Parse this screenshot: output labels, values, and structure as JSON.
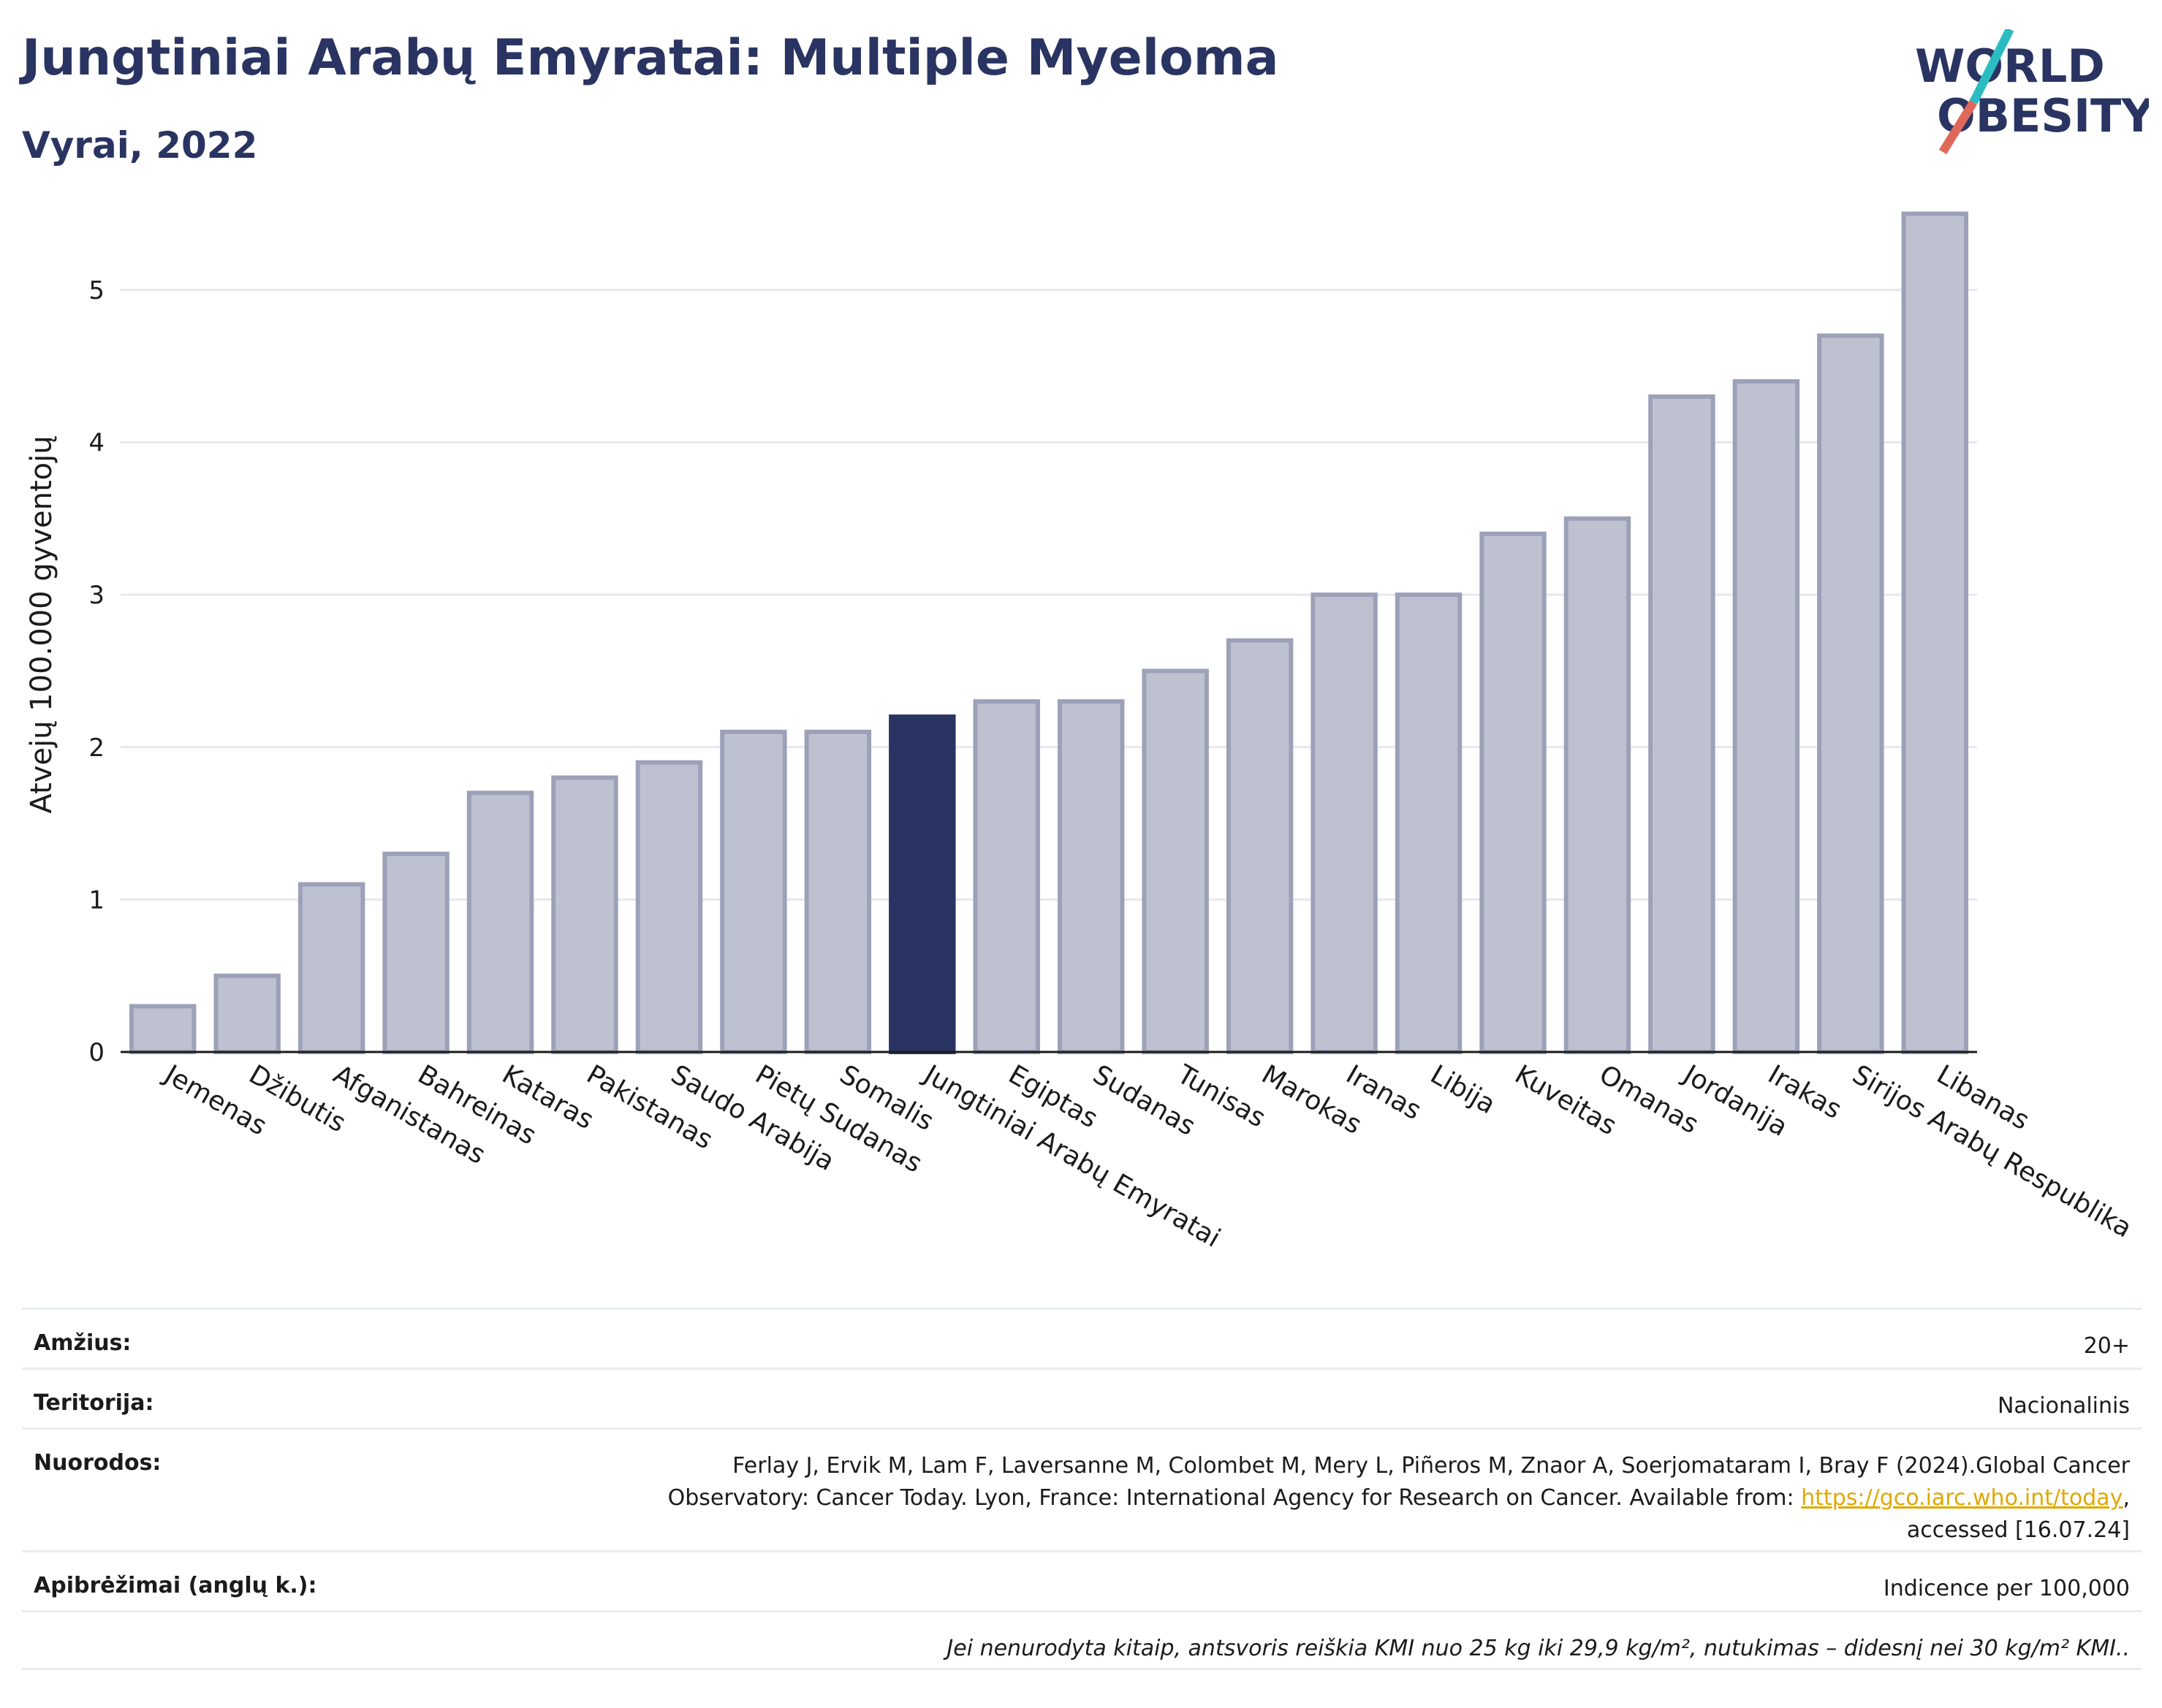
{
  "header": {
    "title": "Jungtiniai Arabų Emyratai: Multiple Myeloma",
    "subtitle": "Vyrai, 2022"
  },
  "logo": {
    "line1": "WORLD",
    "line2": "OBESITY",
    "accent_colors": [
      "#2bbcc2",
      "#e0685a"
    ]
  },
  "colors": {
    "bar": "#bec2d0",
    "bar_stroke": "#9ca1b8",
    "highlight": "#2a3462",
    "grid": "#e6e8ee"
  },
  "chart_data": {
    "type": "bar",
    "categories": [
      "Jemenas",
      "Džibutis",
      "Afganistanas",
      "Bahreinas",
      "Kataras",
      "Pakistanas",
      "Saudo Arabija",
      "Pietų Sudanas",
      "Somalis",
      "Jungtiniai Arabų Emyratai",
      "Egiptas",
      "Sudanas",
      "Tunisas",
      "Marokas",
      "Iranas",
      "Libija",
      "Kuveitas",
      "Omanas",
      "Jordanija",
      "Irakas",
      "Sirijos Arabų Respublika",
      "Libanas"
    ],
    "values": [
      0.3,
      0.5,
      1.1,
      1.3,
      1.7,
      1.8,
      1.9,
      2.1,
      2.1,
      2.2,
      2.3,
      2.3,
      2.5,
      2.7,
      3.0,
      3.0,
      3.4,
      3.5,
      4.3,
      4.4,
      4.7,
      5.5
    ],
    "highlight": "Jungtiniai Arabų Emyratai",
    "ylabel": "Atvejų 100.000 gyventojų",
    "ylim": [
      0,
      5.8
    ],
    "yticks": [
      0,
      1,
      2,
      3,
      4,
      5
    ],
    "grid": true
  },
  "info": {
    "age_label": "Amžius:",
    "age_value": "20+",
    "territory_label": "Teritorija:",
    "territory_value": "Nacionalinis",
    "refs_label": "Nuorodos:",
    "refs_line1": "Ferlay J, Ervik M, Lam F, Laversanne M, Colombet M, Mery L, Piñeros M, Znaor A, Soerjomataram I, Bray F (2024).Global Cancer",
    "refs_line2": "Observatory: Cancer Today. Lyon, France: International Agency for Research on Cancer. Available from: ",
    "refs_link": "https://gco.iarc.who.int/today",
    "refs_line2_end": ",",
    "refs_line3": "accessed [16.07.24]",
    "defs_label": "Apibrėžimai (anglų k.):",
    "defs_value": "Indicence per 100,000",
    "note": "Jei nenurodyta kitaip, antsvoris reiškia KMI nuo 25 kg iki 29,9 kg/m², nutukimas – didesnį nei 30 kg/m² KMI.."
  }
}
